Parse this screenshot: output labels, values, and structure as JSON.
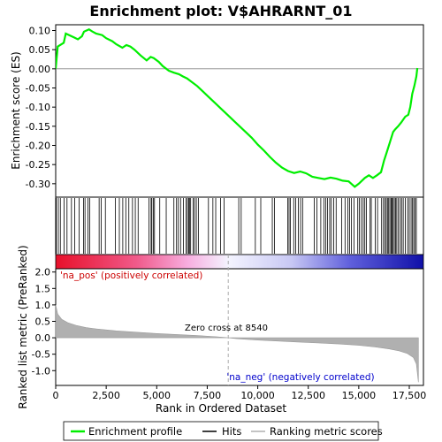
{
  "chart_data": {
    "type": "line",
    "title": "Enrichment plot: V$AHRARNT_01",
    "top_panel": {
      "ylabel": "Enrichment score (ES)",
      "ylim": [
        -0.335,
        0.115
      ],
      "yticks": [
        0.1,
        0.05,
        0.0,
        -0.05,
        -0.1,
        -0.15,
        -0.2,
        -0.25,
        -0.3
      ],
      "ytick_labels": [
        "0.10",
        "0.05",
        "0.00",
        "-0.05",
        "-0.10",
        "-0.15",
        "-0.20",
        "-0.25",
        "-0.30"
      ],
      "series": [
        {
          "name": "Enrichment profile",
          "color": "#00ee00",
          "x": [
            0,
            100,
            400,
            500,
            900,
            1100,
            1300,
            1400,
            1650,
            1800,
            2000,
            2300,
            2500,
            2800,
            3000,
            3300,
            3500,
            3700,
            3900,
            4200,
            4500,
            4700,
            4850,
            5100,
            5300,
            5600,
            5850,
            6100,
            6300,
            6500,
            6700,
            7000,
            7300,
            7600,
            7900,
            8200,
            8500,
            8800,
            9100,
            9400,
            9700,
            10000,
            10300,
            10600,
            10900,
            11200,
            11500,
            11800,
            12100,
            12400,
            12700,
            13000,
            13300,
            13600,
            13900,
            14200,
            14500,
            14800,
            15000,
            15300,
            15500,
            15700,
            15900,
            16100,
            16250,
            16400,
            16550,
            16700,
            16800,
            16950,
            17100,
            17300,
            17450,
            17550,
            17650,
            17750,
            17850,
            17900
          ],
          "y": [
            0.0,
            0.058,
            0.068,
            0.092,
            0.082,
            0.077,
            0.085,
            0.097,
            0.103,
            0.098,
            0.092,
            0.088,
            0.08,
            0.072,
            0.064,
            0.055,
            0.062,
            0.058,
            0.05,
            0.035,
            0.022,
            0.031,
            0.028,
            0.018,
            0.007,
            -0.005,
            -0.01,
            -0.014,
            -0.02,
            -0.025,
            -0.033,
            -0.045,
            -0.06,
            -0.075,
            -0.09,
            -0.105,
            -0.12,
            -0.135,
            -0.15,
            -0.165,
            -0.18,
            -0.198,
            -0.213,
            -0.23,
            -0.245,
            -0.258,
            -0.267,
            -0.272,
            -0.268,
            -0.273,
            -0.282,
            -0.285,
            -0.288,
            -0.284,
            -0.287,
            -0.292,
            -0.294,
            -0.308,
            -0.3,
            -0.285,
            -0.278,
            -0.285,
            -0.278,
            -0.27,
            -0.24,
            -0.215,
            -0.19,
            -0.165,
            -0.158,
            -0.15,
            -0.14,
            -0.125,
            -0.12,
            -0.1,
            -0.065,
            -0.045,
            -0.02,
            0.002
          ]
        }
      ]
    },
    "hits": {
      "name": "Hits",
      "positions": [
        30,
        130,
        230,
        420,
        560,
        780,
        940,
        1160,
        1380,
        1450,
        1600,
        1680,
        2150,
        2250,
        2460,
        2950,
        3150,
        3320,
        3470,
        3620,
        3800,
        3940,
        4080,
        4620,
        4720,
        4760,
        4830,
        4890,
        5150,
        5470,
        5850,
        5980,
        6070,
        6180,
        6320,
        6450,
        6520,
        6580,
        6620,
        6680,
        6800,
        6870,
        6960,
        7060,
        7560,
        7780,
        7920,
        8160,
        8330,
        9060,
        9180,
        9880,
        10150,
        10720,
        10830,
        11480,
        11550,
        11620,
        11780,
        11880,
        12010,
        12120,
        12220,
        12800,
        12930,
        13120,
        13270,
        13360,
        13450,
        13560,
        13640,
        13760,
        13880,
        14150,
        14320,
        14460,
        14550,
        14640,
        14760,
        14950,
        15030,
        15130,
        15220,
        15300,
        15380,
        15560,
        15620,
        15820,
        15930,
        16130,
        16220,
        16290,
        16360,
        16420,
        16480,
        16540,
        16600,
        16650,
        16700,
        16760,
        16820,
        16880,
        16960,
        17050,
        17120,
        17200,
        17300,
        17420,
        17500,
        17590,
        17660,
        17720,
        17790,
        17850
      ]
    },
    "ranked_metric": {
      "name": "Ranking metric scores",
      "ylabel": "Ranked list metric (PreRanked)",
      "xlabel": "Rank in Ordered Dataset",
      "ylim": [
        -1.45,
        2.1
      ],
      "yticks": [
        2.0,
        1.5,
        1.0,
        0.5,
        0.0,
        -0.5,
        -1.0
      ],
      "ytick_labels": [
        "2.0",
        "1.5",
        "1.0",
        "0.5",
        "0.0",
        "-0.5",
        "-1.0"
      ],
      "xlim": [
        0,
        18200
      ],
      "xticks": [
        0,
        2500,
        5000,
        7500,
        10000,
        12500,
        15000,
        17500
      ],
      "xtick_labels": [
        "0",
        "2,500",
        "5,000",
        "7,500",
        "10,000",
        "12,500",
        "15,000",
        "17,500"
      ],
      "x": [
        0,
        100,
        300,
        600,
        1000,
        1500,
        2000,
        3000,
        4000,
        5000,
        6000,
        7000,
        8000,
        8540,
        9000,
        10000,
        11000,
        12000,
        13000,
        14000,
        15000,
        15800,
        16500,
        17000,
        17400,
        17700,
        17850,
        17950
      ],
      "y": [
        1.0,
        0.72,
        0.56,
        0.46,
        0.38,
        0.31,
        0.27,
        0.21,
        0.17,
        0.13,
        0.1,
        0.07,
        0.03,
        0.0,
        -0.03,
        -0.07,
        -0.1,
        -0.13,
        -0.16,
        -0.19,
        -0.23,
        -0.28,
        -0.34,
        -0.4,
        -0.48,
        -0.6,
        -0.8,
        -1.35
      ]
    },
    "zero_cross": 8540,
    "annotations": {
      "zero_cross_label": "Zero cross at 8540",
      "pos_label": "'na_pos' (positively correlated)",
      "neg_label": "'na_neg' (negatively correlated)"
    },
    "colors": {
      "profile": "#00ee00",
      "hits": "#000000",
      "metric_fill": "#b0b0b0",
      "zero_line": "#aaaaaa",
      "pos_label": "#cc0000",
      "neg_label": "#0000cc"
    },
    "legend": {
      "placement": "bottom",
      "entries": [
        "Enrichment profile",
        "Hits",
        "Ranking metric scores"
      ]
    }
  }
}
